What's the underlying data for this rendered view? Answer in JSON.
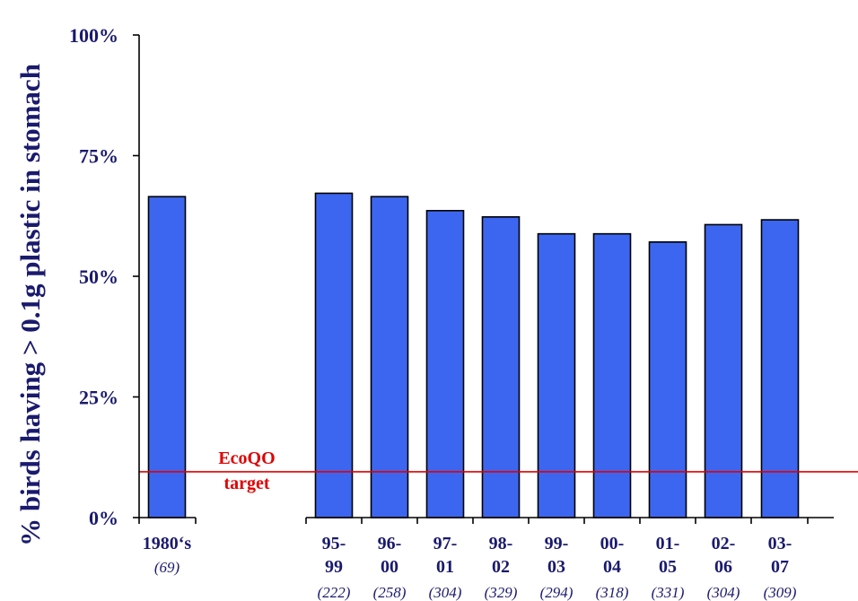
{
  "chart_data": {
    "type": "bar",
    "title": "",
    "xlabel": "",
    "ylabel": "%  birds having > 0.1g  plastic in stomach",
    "ylim": [
      0,
      100
    ],
    "yticks": [
      "0%",
      "25%",
      "50%",
      "75%",
      "100%"
    ],
    "grid": false,
    "bar_color": "#3d66f0",
    "target_color": "#e00000",
    "axis_color": "#000000",
    "text_color": "#1a1a6e",
    "categories": [
      {
        "label": [
          "1980‘s"
        ],
        "n": "(69)",
        "value": 66.5
      },
      {
        "label": [
          "95-",
          "99"
        ],
        "n": "(222)",
        "value": 67.2
      },
      {
        "label": [
          "96-",
          "00"
        ],
        "n": "(258)",
        "value": 66.5
      },
      {
        "label": [
          "97-",
          "01"
        ],
        "n": "(304)",
        "value": 63.6
      },
      {
        "label": [
          "98-",
          "02"
        ],
        "n": "(329)",
        "value": 62.3
      },
      {
        "label": [
          "99-",
          "03"
        ],
        "n": "(294)",
        "value": 58.8
      },
      {
        "label": [
          "00-",
          "04"
        ],
        "n": "(318)",
        "value": 58.8
      },
      {
        "label": [
          "01-",
          "05"
        ],
        "n": "(331)",
        "value": 57.1
      },
      {
        "label": [
          "02-",
          "06"
        ],
        "n": "(304)",
        "value": 60.7
      },
      {
        "label": [
          "03-",
          "07"
        ],
        "n": "(309)",
        "value": 61.7
      }
    ],
    "target": {
      "value": 9.5,
      "label": [
        "EcoQO",
        "target"
      ]
    }
  }
}
